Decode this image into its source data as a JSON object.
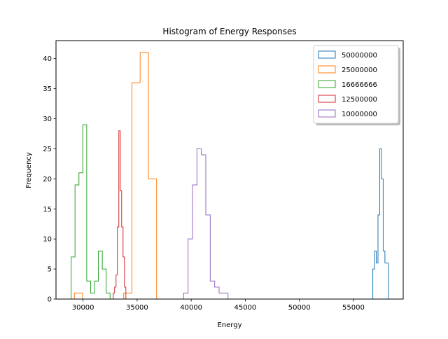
{
  "chart_data": {
    "type": "histogram",
    "title": "Histogram of Energy Responses",
    "xlabel": "Energy",
    "ylabel": "Frequency",
    "xlim": [
      27500,
      59600
    ],
    "ylim": [
      0,
      43
    ],
    "x_ticks": [
      30000,
      35000,
      40000,
      45000,
      50000,
      55000
    ],
    "x_tick_labels": [
      "30000",
      "35000",
      "40000",
      "45000",
      "50000",
      "55000"
    ],
    "y_ticks": [
      0,
      5,
      10,
      15,
      20,
      25,
      30,
      35,
      40
    ],
    "y_tick_labels": [
      "0",
      "5",
      "10",
      "15",
      "20",
      "25",
      "30",
      "35",
      "40"
    ],
    "grid": false,
    "legend_position": "top-right",
    "histtype": "step",
    "series": [
      {
        "name": "50000000",
        "color": "#1f77b4",
        "bin_edges": [
          56790,
          56950,
          57110,
          57270,
          57430,
          57590,
          57750,
          57910,
          58070,
          58230,
          58390
        ],
        "counts": [
          5,
          8,
          6,
          14,
          25,
          20,
          8,
          6,
          6,
          0
        ]
      },
      {
        "name": "25000000",
        "color": "#ff7f0e",
        "bin_edges": [
          29200,
          29960,
          30720,
          31480,
          32240,
          33000,
          33760,
          34520,
          35280,
          36040,
          36800
        ],
        "counts": [
          1,
          0,
          0,
          0,
          0,
          0,
          1,
          36,
          41,
          20
        ]
      },
      {
        "name": "16666666",
        "color": "#2ca02c",
        "bin_edges": [
          28900,
          29260,
          29620,
          29980,
          30340,
          30700,
          31060,
          31420,
          31780,
          32140,
          32500
        ],
        "counts": [
          7,
          19,
          21,
          29,
          3,
          1,
          3,
          8,
          5,
          1
        ]
      },
      {
        "name": "12500000",
        "color": "#d62728",
        "bin_edges": [
          32790,
          32920,
          33050,
          33180,
          33310,
          33440,
          33570,
          33700,
          33830,
          33960,
          34090
        ],
        "counts": [
          1,
          2,
          4,
          12,
          28,
          18,
          12,
          7,
          2,
          0
        ]
      },
      {
        "name": "10000000",
        "color": "#9467bd",
        "bin_edges": [
          39300,
          39710,
          40120,
          40530,
          40940,
          41350,
          41760,
          42170,
          42580,
          42990,
          43400
        ],
        "counts": [
          1,
          10,
          19,
          25,
          24,
          14,
          3,
          2,
          1,
          1
        ]
      }
    ]
  }
}
